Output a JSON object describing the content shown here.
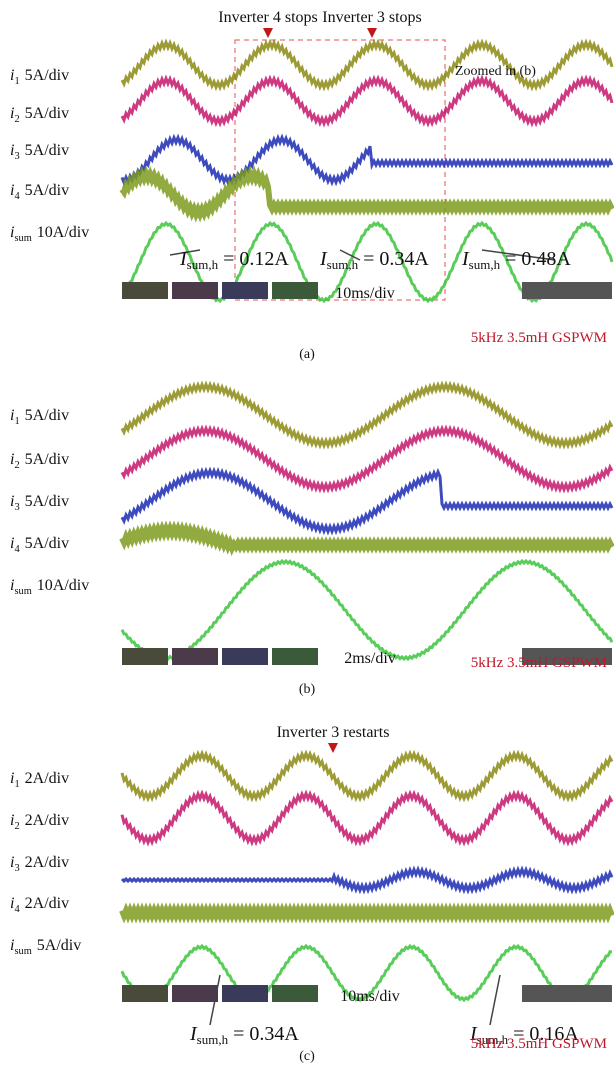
{
  "panels": [
    {
      "label": "(a)",
      "annotations": [
        "Inverter 4 stops",
        "Inverter 3 stops"
      ],
      "zoom_note": "Zoomed in (b)",
      "traces": [
        {
          "symbol": "i",
          "subscript": "1",
          "scale": "5A/div"
        },
        {
          "symbol": "i",
          "subscript": "2",
          "scale": "5A/div"
        },
        {
          "symbol": "i",
          "subscript": "3",
          "scale": "5A/div"
        },
        {
          "symbol": "i",
          "subscript": "4",
          "scale": "5A/div"
        },
        {
          "symbol": "i",
          "subscript": "sum",
          "scale": "10A/div"
        }
      ],
      "measurements": [
        {
          "symbol": "I",
          "subscript": "sum,h",
          "value": "= 0.12A"
        },
        {
          "symbol": "I",
          "subscript": "sum,h",
          "value": "= 0.34A"
        },
        {
          "symbol": "I",
          "subscript": "sum,h",
          "value": "= 0.48A"
        }
      ],
      "timebase": "10ms/div",
      "condition": "5kHz 3.5mH GSPWM"
    },
    {
      "label": "(b)",
      "annotations": [],
      "traces": [
        {
          "symbol": "i",
          "subscript": "1",
          "scale": "5A/div"
        },
        {
          "symbol": "i",
          "subscript": "2",
          "scale": "5A/div"
        },
        {
          "symbol": "i",
          "subscript": "3",
          "scale": "5A/div"
        },
        {
          "symbol": "i",
          "subscript": "4",
          "scale": "5A/div"
        },
        {
          "symbol": "i",
          "subscript": "sum",
          "scale": "10A/div"
        }
      ],
      "measurements": [],
      "timebase": "2ms/div",
      "condition": "5kHz 3.5mH GSPWM"
    },
    {
      "label": "(c)",
      "annotations": [
        "Inverter 3 restarts"
      ],
      "traces": [
        {
          "symbol": "i",
          "subscript": "1",
          "scale": "2A/div"
        },
        {
          "symbol": "i",
          "subscript": "2",
          "scale": "2A/div"
        },
        {
          "symbol": "i",
          "subscript": "3",
          "scale": "2A/div"
        },
        {
          "symbol": "i",
          "subscript": "4",
          "scale": "2A/div"
        },
        {
          "symbol": "i",
          "subscript": "sum",
          "scale": "5A/div"
        }
      ],
      "measurements": [
        {
          "symbol": "I",
          "subscript": "sum,h",
          "value": "= 0.34A"
        },
        {
          "symbol": "I",
          "subscript": "sum,h",
          "value": "= 0.16A"
        }
      ],
      "timebase": "10ms/div",
      "condition": "5kHz 3.5mH GSPWM"
    }
  ]
}
